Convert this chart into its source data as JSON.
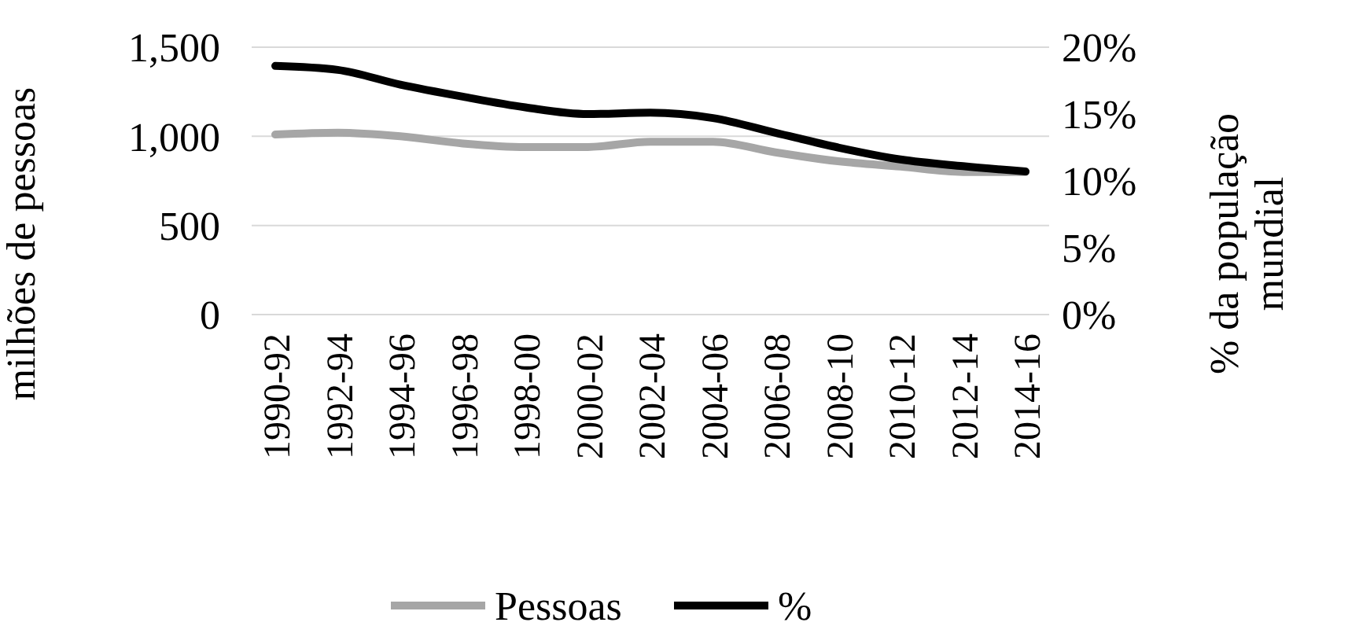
{
  "chart_data": {
    "type": "line",
    "ylabel": "milhões de pessoas",
    "y2label": "% da população mundial",
    "categories": [
      "1990-92",
      "1992-94",
      "1994-96",
      "1996-98",
      "1998-00",
      "2000-02",
      "2002-04",
      "2004-06",
      "2006-08",
      "2008-10",
      "2010-12",
      "2012-14",
      "2014-16"
    ],
    "series": [
      {
        "name": "Pessoas",
        "color": "#a6a6a6",
        "values": [
          1010,
          1020,
          1000,
          960,
          940,
          940,
          970,
          970,
          910,
          860,
          830,
          800,
          800
        ]
      },
      {
        "name": "%",
        "color": "#000000",
        "axis": "y2",
        "values": [
          18.6,
          18.3,
          17.2,
          16.3,
          15.5,
          15.0,
          15.1,
          14.7,
          13.6,
          12.5,
          11.6,
          11.1,
          10.7
        ]
      }
    ],
    "ylim": [
      0,
      1500
    ],
    "yticks": [
      0,
      500,
      {
        "value": 1000,
        "label": "1,000"
      },
      {
        "value": 1500,
        "label": "1,500"
      }
    ],
    "y2lim": [
      0,
      20
    ],
    "y2ticks": [
      {
        "value": 0,
        "label": "0%"
      },
      {
        "value": 5,
        "label": "5%"
      },
      {
        "value": 10,
        "label": "10%"
      },
      {
        "value": 15,
        "label": "15%"
      },
      {
        "value": 20,
        "label": "20%"
      }
    ],
    "grid": "y",
    "legend": "bottom",
    "marker": "none",
    "line_style": "solid"
  }
}
